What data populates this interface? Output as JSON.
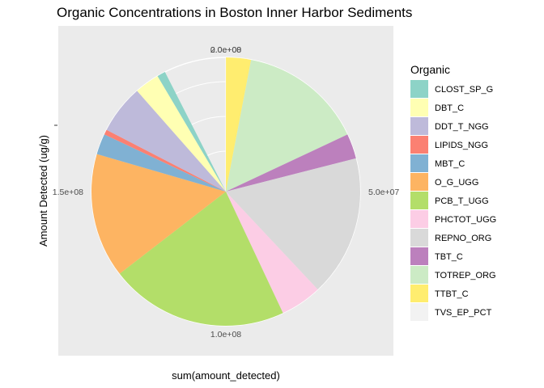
{
  "chart_data": {
    "type": "pie",
    "title": "Organic Concentrations in Boston Inner Harbor Sediments",
    "xlabel": "sum(amount_detected)",
    "ylabel": "Amount Detected (ug/g)",
    "legend_title": "Organic",
    "legend_position": "right",
    "grid": true,
    "theta_range": [
      0,
      200000000
    ],
    "tick_labels": [
      {
        "value": 0,
        "label": "0.0e+00"
      },
      {
        "value": 50000000,
        "label": "5.0e+07"
      },
      {
        "value": 100000000,
        "label": "1.0e+08"
      },
      {
        "value": 150000000,
        "label": "1.5e+08"
      },
      {
        "value": 200000000,
        "label": "2.0e+08"
      }
    ],
    "slices": [
      {
        "label": "TVS_EP_PCT",
        "value": 20000,
        "color": "#F2F2F2"
      },
      {
        "label": "TTBT_C",
        "value": 6000000,
        "color": "#FFED6F"
      },
      {
        "label": "TOTREP_ORG",
        "value": 30000000,
        "color": "#CCEBC5"
      },
      {
        "label": "TBT_C",
        "value": 6000000,
        "color": "#BC80BD"
      },
      {
        "label": "REPNO_ORG",
        "value": 34000000,
        "color": "#D9D9D9"
      },
      {
        "label": "PHCTOT_UGG",
        "value": 10000000,
        "color": "#FCCDE5"
      },
      {
        "label": "PCB_T_UGG",
        "value": 43000000,
        "color": "#B3DE69"
      },
      {
        "label": "O_G_UGG",
        "value": 30000000,
        "color": "#FDB462"
      },
      {
        "label": "MBT_C",
        "value": 5000000,
        "color": "#80B1D3"
      },
      {
        "label": "LIPIDS_NGG",
        "value": 1200000,
        "color": "#FB8072"
      },
      {
        "label": "DDT_T_NGG",
        "value": 11800000,
        "color": "#BEBADA"
      },
      {
        "label": "DBT_C",
        "value": 6000000,
        "color": "#FFFFB3"
      },
      {
        "label": "CLOST_SP_G",
        "value": 2000000,
        "color": "#8DD3C7"
      }
    ],
    "legend_order": [
      "CLOST_SP_G",
      "DBT_C",
      "DDT_T_NGG",
      "LIPIDS_NGG",
      "MBT_C",
      "O_G_UGG",
      "PCB_T_UGG",
      "PHCTOT_UGG",
      "REPNO_ORG",
      "TBT_C",
      "TOTREP_ORG",
      "TTBT_C",
      "TVS_EP_PCT"
    ]
  }
}
